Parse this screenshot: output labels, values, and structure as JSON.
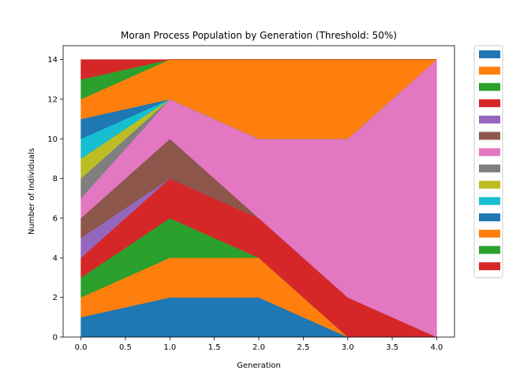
{
  "chart_data": {
    "type": "area",
    "stacked": true,
    "title": "Moran Process Population by Generation (Threshold: 50%)",
    "xlabel": "Generation",
    "ylabel": "Number of Individuals",
    "x": [
      0,
      1,
      2,
      3,
      4
    ],
    "xlim": [
      -0.2,
      4.2
    ],
    "ylim": [
      0,
      14.7
    ],
    "xticks": [
      0.0,
      0.5,
      1.0,
      1.5,
      2.0,
      2.5,
      3.0,
      3.5,
      4.0
    ],
    "xtick_labels": [
      "0.0",
      "0.5",
      "1.0",
      "1.5",
      "2.0",
      "2.5",
      "3.0",
      "3.5",
      "4.0"
    ],
    "yticks": [
      0,
      2,
      4,
      6,
      8,
      10,
      12,
      14
    ],
    "ytick_labels": [
      "0",
      "2",
      "4",
      "6",
      "8",
      "10",
      "12",
      "14"
    ],
    "grid": false,
    "legend": {
      "placement": "outside-right",
      "labels_shown": false
    },
    "series": [
      {
        "color": "#1f77b4",
        "values": [
          1,
          2,
          2,
          0,
          0
        ]
      },
      {
        "color": "#ff7f0e",
        "values": [
          1,
          2,
          2,
          0,
          0
        ]
      },
      {
        "color": "#2ca02c",
        "values": [
          1,
          2,
          0,
          0,
          0
        ]
      },
      {
        "color": "#d62728",
        "values": [
          1,
          2,
          2,
          2,
          0
        ]
      },
      {
        "color": "#9467bd",
        "values": [
          1,
          0,
          0,
          0,
          0
        ]
      },
      {
        "color": "#8c564b",
        "values": [
          1,
          2,
          0,
          0,
          0
        ]
      },
      {
        "color": "#e377c2",
        "values": [
          1,
          2,
          4,
          8,
          14
        ]
      },
      {
        "color": "#7f7f7f",
        "values": [
          1,
          0,
          0,
          0,
          0
        ]
      },
      {
        "color": "#bcbd22",
        "values": [
          1,
          0,
          0,
          0,
          0
        ]
      },
      {
        "color": "#17becf",
        "values": [
          1,
          0,
          0,
          0,
          0
        ]
      },
      {
        "color": "#1f77b4",
        "values": [
          1,
          0,
          0,
          0,
          0
        ]
      },
      {
        "color": "#ff7f0e",
        "values": [
          1,
          2,
          4,
          4,
          0
        ]
      },
      {
        "color": "#2ca02c",
        "values": [
          1,
          0,
          0,
          0,
          0
        ]
      },
      {
        "color": "#d62728",
        "values": [
          1,
          0,
          0,
          0,
          0
        ]
      }
    ]
  }
}
